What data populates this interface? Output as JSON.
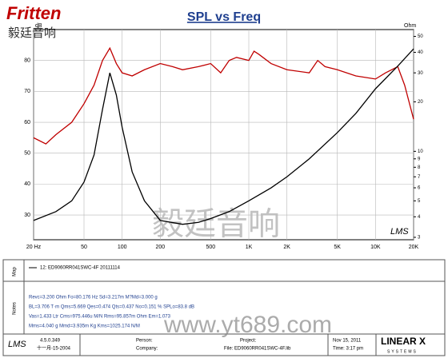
{
  "header": {
    "logo": "Fritten",
    "logo_cn": "毅廷音响"
  },
  "chart_data": {
    "type": "line",
    "title": "SPL vs Freq",
    "y_label": "dB",
    "y2_label": "Ohm",
    "annotations": [
      "LMS",
      "毅廷音响"
    ],
    "xscale": "log",
    "y2scale": "log",
    "grid": true,
    "xlim": [
      20,
      20000
    ],
    "xticks": [
      {
        "value": 20,
        "label": "20 Hz"
      },
      50,
      100,
      200,
      500,
      {
        "value": 1000,
        "label": "1K"
      },
      {
        "value": 2000,
        "label": "2K"
      },
      {
        "value": 5000,
        "label": "5K"
      },
      {
        "value": 10000,
        "label": "10K"
      },
      {
        "value": 20000,
        "label": "20K"
      }
    ],
    "ylim": [
      22,
      90
    ],
    "yticks": [
      30,
      40,
      50,
      60,
      70,
      80
    ],
    "y2lim": [
      2.9,
      55
    ],
    "y2ticks": [
      3,
      4,
      5,
      6,
      7,
      8,
      9,
      10,
      20,
      30,
      40,
      50
    ],
    "series": [
      {
        "color": "#c00000",
        "x": [
          20,
          25,
          30,
          40,
          50,
          60,
          70,
          80,
          90,
          100,
          120,
          150,
          200,
          250,
          300,
          400,
          500,
          600,
          700,
          800,
          1000,
          1100,
          1200,
          1500,
          2000,
          3000,
          3500,
          4000,
          5000,
          7000,
          10000,
          12000,
          15000,
          17000,
          20000
        ],
        "values": [
          55,
          53,
          56,
          60,
          66,
          72,
          80,
          84,
          79,
          76,
          75,
          77,
          79,
          78,
          77,
          78,
          79,
          76,
          80,
          81,
          80,
          83,
          82,
          79,
          77,
          76,
          80,
          78,
          77,
          75,
          74,
          76,
          78,
          72,
          61
        ]
      },
      {
        "name": "12: ED9060RR041SWC-4F 20111114",
        "color": "#000000",
        "axis": "y2",
        "x": [
          20,
          30,
          40,
          50,
          60,
          70,
          80,
          90,
          100,
          120,
          150,
          200,
          300,
          400,
          500,
          700,
          1000,
          1500,
          2000,
          3000,
          5000,
          7000,
          10000,
          15000,
          20000
        ],
        "values": [
          3.8,
          4.3,
          5,
          6.5,
          9.5,
          18,
          30,
          22,
          14,
          7.5,
          5,
          3.8,
          3.6,
          3.7,
          3.9,
          4.3,
          5,
          6,
          7,
          9,
          13,
          17,
          24,
          33,
          42
        ]
      }
    ]
  },
  "panel": {
    "map_label": "Map",
    "notes_label": "Notes",
    "notes": [
      "Revc=3.200 Ohm  Fo=80.176 Hz  Sd=3.217m M?Md=3.000 g",
      "BL=3.706 T·m  Qms=5.669  Qes=0.474  Qts=0.437  No=0.151 %  SPLo=83.8 dB",
      "Vas=1.433 Ltr  Cms=975.446u M/N  Rms=95.857m Ohm  Em=1.073",
      "Mms=4.040 g  Mmd=3.935m Kg  Kms=1025.174 N/M"
    ],
    "watermark": "www.yt689.com",
    "footer": {
      "lms": "LMS",
      "version": "4.5.0.349",
      "date": "十一月-15-2004",
      "person": "Person:",
      "company": "Company:",
      "project": "Project:",
      "file": "File: ED9060RR041SWC-4F.lib",
      "nov": "Nov 15, 2011",
      "time": "Time: 3:17 pm",
      "brand": "LINEAR X",
      "systems": "SYSTEMS"
    }
  }
}
